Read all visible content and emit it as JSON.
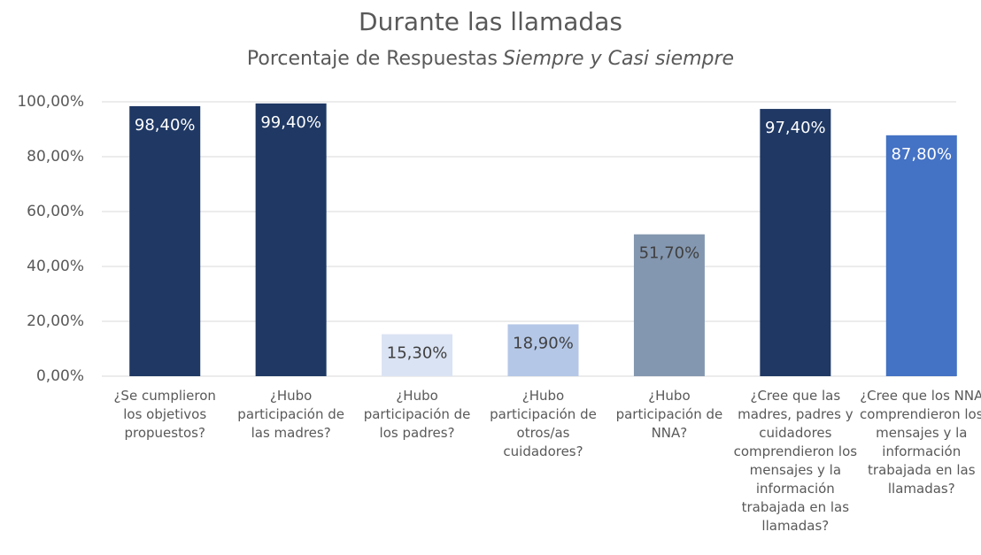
{
  "chart_data": {
    "type": "bar",
    "title": "Durante las llamadas",
    "subtitle": [
      "Porcentaje de Respuestas",
      "Siempre y Casi siempre"
    ],
    "categories": [
      "¿Se cumplieron los objetivos propuestos?",
      "¿Hubo participación de las madres?",
      "¿Hubo participación de los padres?",
      "¿Hubo participación de otros/as cuidadores?",
      "¿Hubo participación de NNA?",
      "¿Cree que las madres, padres y cuidadores comprendieron los mensajes y la información trabajada en las llamadas?",
      "¿Cree que los NNA comprendieron los mensajes y la información trabajada en las llamadas?"
    ],
    "values": [
      98.4,
      99.4,
      15.3,
      18.9,
      51.7,
      97.4,
      87.8
    ],
    "value_labels": [
      "98,40%",
      "99,40%",
      "15,30%",
      "18,90%",
      "51,70%",
      "97,40%",
      "87,80%"
    ],
    "colors": [
      "#1f3864",
      "#1f3864",
      "#dae3f3",
      "#b4c7e7",
      "#8497b0",
      "#1f3864",
      "#4472c4"
    ],
    "value_label_colors": [
      "#ffffff",
      "#ffffff",
      "#404040",
      "#404040",
      "#404040",
      "#ffffff",
      "#ffffff"
    ],
    "ylim": [
      0,
      100
    ],
    "yticks": [
      {
        "value": 0,
        "label": "0,00%"
      },
      {
        "value": 20,
        "label": "20,00%"
      },
      {
        "value": 40,
        "label": "40,00%"
      },
      {
        "value": 60,
        "label": "60,00%"
      },
      {
        "value": 80,
        "label": "80,00%"
      },
      {
        "value": 100,
        "label": "100,00%"
      }
    ],
    "grid": true
  }
}
